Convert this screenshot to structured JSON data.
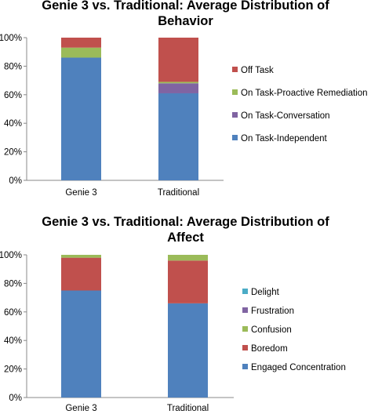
{
  "chart_data": [
    {
      "type": "bar",
      "stacked": true,
      "title": "Genie 3 vs. Traditional: Average Distribution of Behavior",
      "title_lines": [
        "Genie 3 vs. Traditional: Average Distribution of",
        "Behavior"
      ],
      "categories": [
        "Genie 3",
        "Traditional"
      ],
      "ylim": [
        0,
        100
      ],
      "yticks": [
        "0%",
        "20%",
        "40%",
        "60%",
        "80%",
        "100%"
      ],
      "series": [
        {
          "name": "On Task-Independent",
          "values": [
            86,
            61
          ],
          "color": "#4F81BD"
        },
        {
          "name": "On Task-Conversation",
          "values": [
            0,
            7
          ],
          "color": "#8064A2"
        },
        {
          "name": "On Task-Proactive Remediation",
          "values": [
            7,
            1
          ],
          "color": "#9BBB59"
        },
        {
          "name": "Off Task",
          "values": [
            7,
            31
          ],
          "color": "#C0504D"
        }
      ],
      "legend": "right"
    },
    {
      "type": "bar",
      "stacked": true,
      "title": "Genie 3 vs. Traditional: Average Distribution of Affect",
      "title_lines": [
        "Genie 3 vs. Traditional: Average Distribution of",
        "Affect"
      ],
      "categories": [
        "Genie 3",
        "Traditional"
      ],
      "ylim": [
        0,
        100
      ],
      "yticks": [
        "0%",
        "20%",
        "40%",
        "60%",
        "80%",
        "100%"
      ],
      "series": [
        {
          "name": "Engaged Concentration",
          "values": [
            75,
            66
          ],
          "color": "#4F81BD"
        },
        {
          "name": "Boredom",
          "values": [
            23,
            30
          ],
          "color": "#C0504D"
        },
        {
          "name": "Confusion",
          "values": [
            2,
            4
          ],
          "color": "#9BBB59"
        },
        {
          "name": "Frustration",
          "values": [
            0,
            0
          ],
          "color": "#8064A2"
        },
        {
          "name": "Delight",
          "values": [
            0,
            0
          ],
          "color": "#4BACC6"
        }
      ],
      "legend": "right"
    }
  ]
}
